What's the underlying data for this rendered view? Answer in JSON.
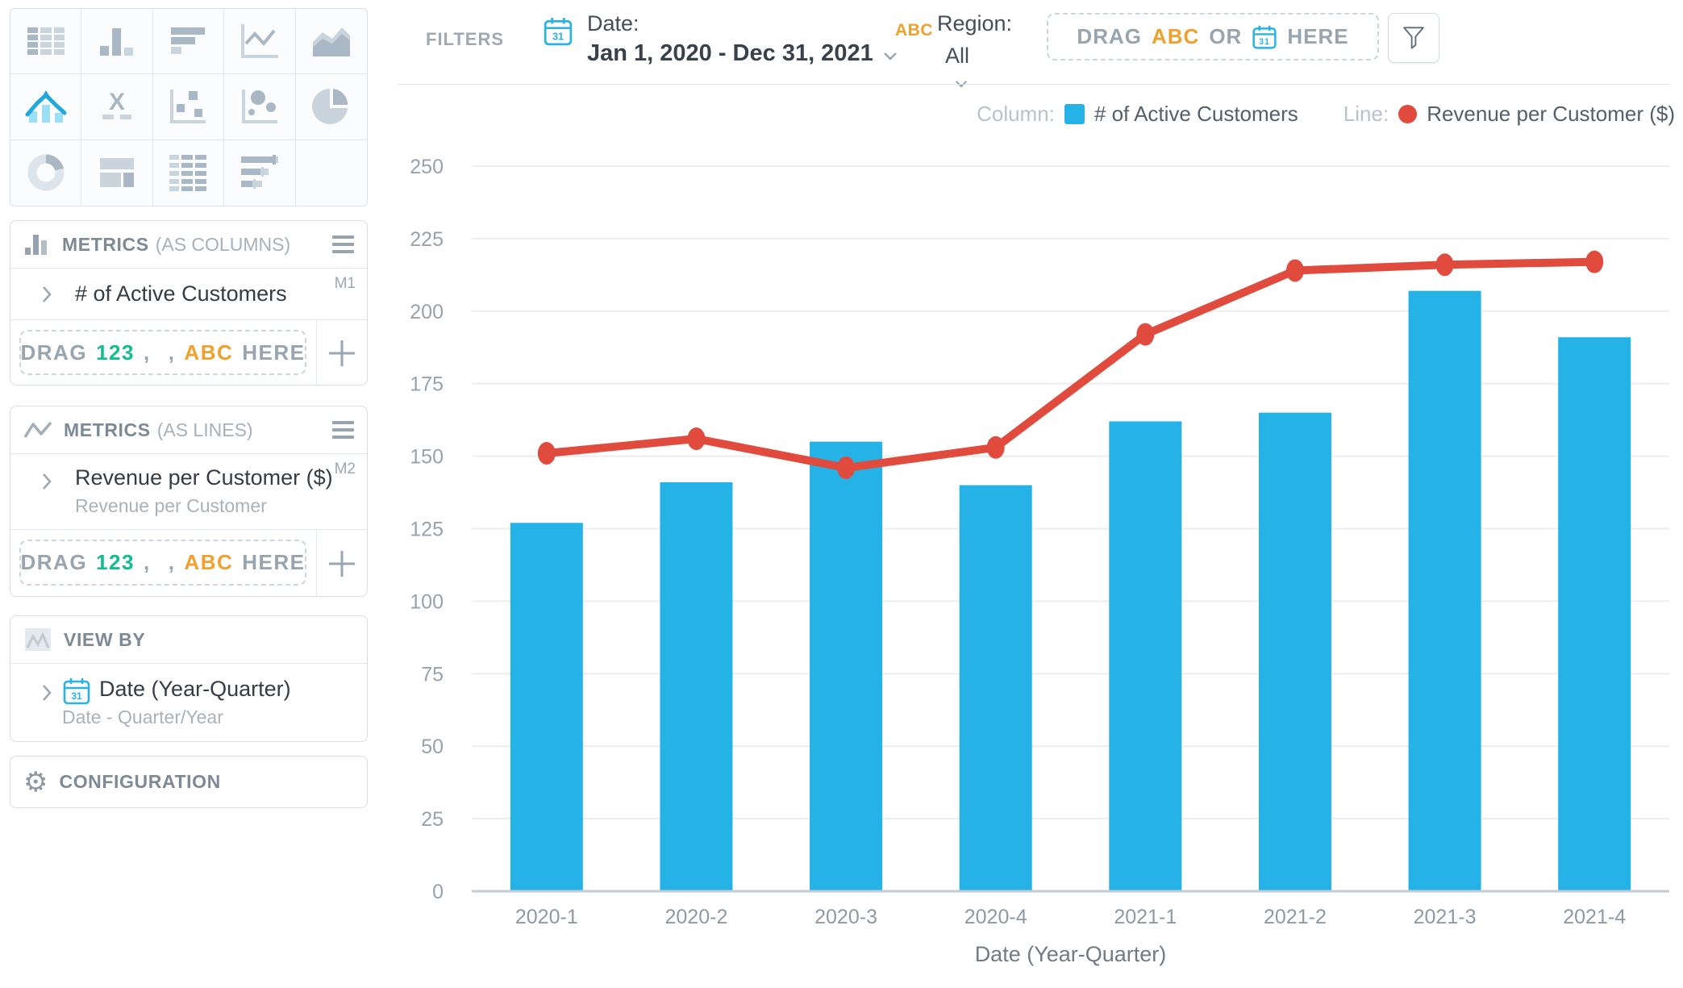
{
  "chart_picker": {
    "selected": "combo-chart",
    "items": [
      "table",
      "column-chart",
      "bar-chart",
      "line-chart",
      "area-chart",
      "combo-chart",
      "x-axis",
      "scatter-chart",
      "bubble-chart",
      "pie-chart",
      "donut-chart",
      "layout",
      "pivot-table",
      "bullet-chart",
      "empty"
    ]
  },
  "filters": {
    "label": "FILTERS",
    "date": {
      "label": "Date:",
      "value": "Jan 1, 2020 - Dec 31, 2021"
    },
    "region": {
      "prefix": "ABC",
      "label": "Region:",
      "value": "All"
    },
    "dropzone": {
      "drag": "DRAG",
      "abc": "ABC",
      "or": "OR",
      "here": "HERE"
    }
  },
  "panels": {
    "metrics_columns": {
      "title": "METRICS",
      "subtitle": "(AS COLUMNS)",
      "item": {
        "name": "# of Active Customers",
        "badge": "M1"
      },
      "dropzone": {
        "drag": "DRAG",
        "num": "123",
        "comma": ",",
        "abc": "ABC",
        "here": "HERE"
      }
    },
    "metrics_lines": {
      "title": "METRICS",
      "subtitle": "(AS LINES)",
      "item": {
        "name": "Revenue per Customer ($)",
        "sub": "Revenue per Customer",
        "badge": "M2"
      },
      "dropzone": {
        "drag": "DRAG",
        "num": "123",
        "comma": ",",
        "abc": "ABC",
        "here": "HERE"
      }
    },
    "view_by": {
      "title": "VIEW BY",
      "item": {
        "name": "Date (Year-Quarter)",
        "sub": "Date - Quarter/Year"
      }
    },
    "configuration": {
      "title": "CONFIGURATION"
    }
  },
  "legend": {
    "column_label": "Column:",
    "column_name": "# of Active Customers",
    "line_label": "Line:",
    "line_name": "Revenue per Customer ($)"
  },
  "chart_data": {
    "type": "combo",
    "categories": [
      "2020-1",
      "2020-2",
      "2020-3",
      "2020-4",
      "2021-1",
      "2021-2",
      "2021-3",
      "2021-4"
    ],
    "series": [
      {
        "name": "# of Active Customers",
        "type": "bar",
        "color": "#25B3E7",
        "values": [
          127,
          141,
          155,
          140,
          162,
          165,
          207,
          191
        ]
      },
      {
        "name": "Revenue per Customer ($)",
        "type": "line",
        "color": "#E04B3E",
        "values": [
          151,
          156,
          146,
          153,
          192,
          214,
          216,
          217
        ]
      }
    ],
    "xlabel": "Date (Year-Quarter)",
    "ylim": [
      0,
      250
    ],
    "yticks": [
      0,
      25,
      50,
      75,
      100,
      125,
      150,
      175,
      200,
      225,
      250
    ],
    "grid": true,
    "legend_position": "top-right"
  },
  "colors": {
    "bar": "#25B3E7",
    "line": "#E04B3E",
    "accent_orange": "#EFA02E",
    "accent_green": "#13BD8E",
    "accent_cyan": "#29B2E8",
    "grid_line": "#ebedef",
    "axis_line": "#c6cbd1",
    "tick_text": "#98a2ac"
  }
}
